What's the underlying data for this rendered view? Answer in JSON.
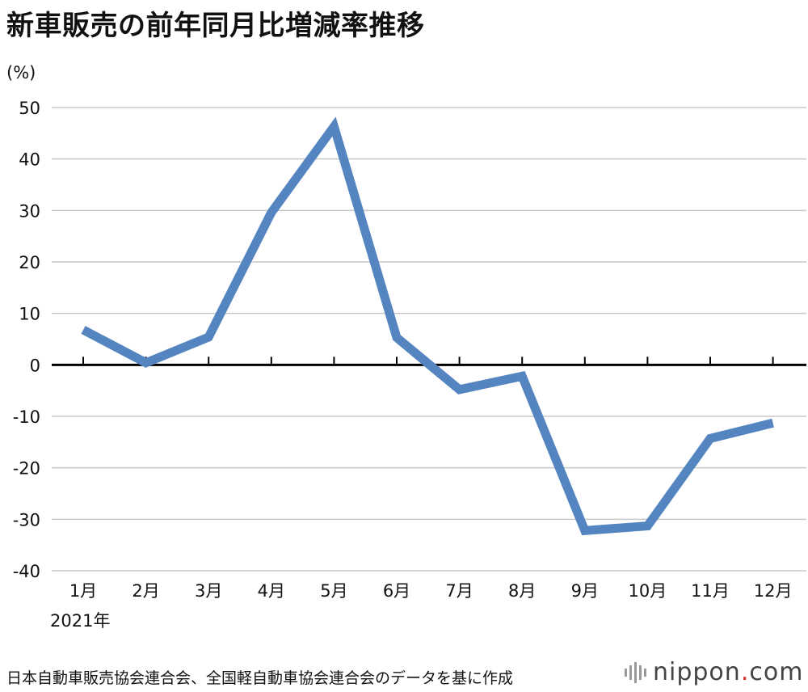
{
  "title": "新車販売の前年同月比増減率推移",
  "source": "日本自動車販売協会連合会、全国軽自動車協会連合会のデータを基に作成",
  "brand": {
    "name": "nippon",
    "dot": ".",
    "tld": "com",
    "icon": "bars-logo-icon",
    "dot_color": "#d9282f"
  },
  "chart_data": {
    "type": "line",
    "title": "新車販売の前年同月比増減率推移",
    "ylabel": "(%)",
    "xlabel": "",
    "year_label": "2021年",
    "categories": [
      "1月",
      "2月",
      "3月",
      "4月",
      "5月",
      "6月",
      "7月",
      "8月",
      "9月",
      "10月",
      "11月",
      "12月"
    ],
    "series": [
      {
        "values": [
          6.8,
          0.4,
          5.4,
          29.6,
          46.3,
          5.3,
          -4.8,
          -2.2,
          -32.2,
          -31.3,
          -14.3,
          -11.3
        ],
        "color": "#5585c0"
      }
    ],
    "ylim": [
      -40,
      50
    ],
    "yticks": [
      50,
      40,
      30,
      20,
      10,
      0,
      -10,
      -20,
      -30,
      -40
    ],
    "ytick_labels": [
      "50",
      "40",
      "30",
      "20",
      "10",
      "0",
      "-10",
      "-20",
      "-30",
      "-40"
    ],
    "grid": true,
    "grid_color": "#c8c8c8",
    "zero_line_color": "#000000"
  }
}
